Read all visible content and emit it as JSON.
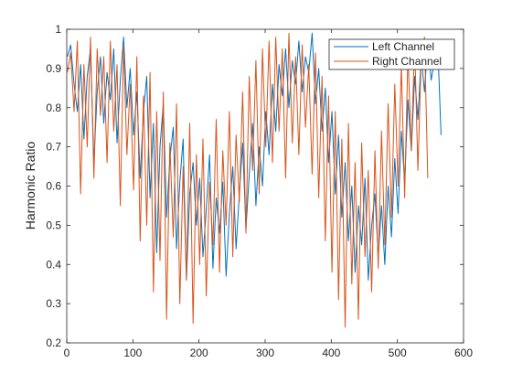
{
  "chart_data": {
    "type": "line",
    "title": "",
    "xlabel": "",
    "ylabel": "Harmonic Ratio",
    "xlim": [
      0,
      600
    ],
    "ylim": [
      0.2,
      1
    ],
    "x_ticks": [
      "0",
      "100",
      "200",
      "300",
      "400",
      "500",
      "600"
    ],
    "y_ticks": [
      "0.2",
      "0.3",
      "0.4",
      "0.5",
      "0.6",
      "0.7",
      "0.8",
      "0.9",
      "1"
    ],
    "grid": false,
    "legend_position": "top-right",
    "x_start": 1,
    "x_step": 5,
    "series": [
      {
        "name": "Left Channel",
        "color": "#0072BD",
        "values": [
          0.93,
          0.96,
          0.86,
          0.79,
          0.91,
          0.72,
          0.88,
          0.95,
          0.66,
          0.84,
          0.93,
          0.76,
          0.89,
          0.82,
          0.95,
          0.71,
          0.87,
          0.98,
          0.8,
          0.9,
          0.73,
          0.84,
          0.62,
          0.79,
          0.88,
          0.57,
          0.76,
          0.43,
          0.7,
          0.81,
          0.52,
          0.67,
          0.75,
          0.44,
          0.61,
          0.72,
          0.36,
          0.58,
          0.66,
          0.5,
          0.62,
          0.42,
          0.54,
          0.68,
          0.39,
          0.57,
          0.48,
          0.61,
          0.37,
          0.53,
          0.65,
          0.44,
          0.58,
          0.71,
          0.49,
          0.63,
          0.76,
          0.55,
          0.7,
          0.6,
          0.79,
          0.68,
          0.86,
          0.74,
          0.91,
          0.83,
          0.95,
          0.8,
          0.92,
          0.86,
          0.97,
          0.84,
          0.93,
          0.89,
          0.99,
          0.81,
          0.9,
          0.74,
          0.85,
          0.66,
          0.79,
          0.58,
          0.73,
          0.52,
          0.66,
          0.46,
          0.6,
          0.38,
          0.55,
          0.45,
          0.62,
          0.36,
          0.5,
          0.58,
          0.42,
          0.55,
          0.4,
          0.6,
          0.47,
          0.67,
          0.53,
          0.74,
          0.61,
          0.82,
          0.69,
          0.88,
          0.77,
          0.93,
          0.84,
          0.97,
          0.87,
          0.92,
          0.96,
          0.73
        ]
      },
      {
        "name": "Right Channel",
        "color": "#D95319",
        "values": [
          0.89,
          0.94,
          0.79,
          0.97,
          0.58,
          0.91,
          0.7,
          0.98,
          0.62,
          0.95,
          0.78,
          0.93,
          0.66,
          0.97,
          0.74,
          0.91,
          0.55,
          0.96,
          0.68,
          0.86,
          0.59,
          0.93,
          0.46,
          0.83,
          0.5,
          0.89,
          0.33,
          0.79,
          0.41,
          0.84,
          0.26,
          0.71,
          0.47,
          0.81,
          0.3,
          0.65,
          0.36,
          0.76,
          0.25,
          0.68,
          0.4,
          0.72,
          0.32,
          0.61,
          0.45,
          0.77,
          0.38,
          0.69,
          0.5,
          0.79,
          0.42,
          0.73,
          0.56,
          0.84,
          0.48,
          0.88,
          0.64,
          0.92,
          0.58,
          0.95,
          0.7,
          0.97,
          0.66,
          0.98,
          0.74,
          0.95,
          0.62,
          0.99,
          0.71,
          0.93,
          0.68,
          0.96,
          0.75,
          0.91,
          0.63,
          0.94,
          0.57,
          0.88,
          0.46,
          0.83,
          0.38,
          0.79,
          0.31,
          0.72,
          0.24,
          0.76,
          0.35,
          0.66,
          0.26,
          0.71,
          0.42,
          0.64,
          0.33,
          0.69,
          0.39,
          0.74,
          0.45,
          0.81,
          0.52,
          0.86,
          0.6,
          0.91,
          0.57,
          0.94,
          0.69,
          0.97,
          0.64,
          0.93,
          0.98,
          0.62
        ]
      }
    ]
  }
}
